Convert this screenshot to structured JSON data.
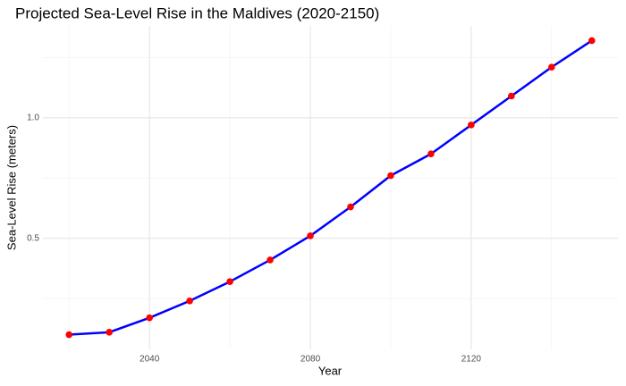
{
  "chart_data": {
    "type": "line",
    "title": "Projected Sea-Level Rise in the Maldives (2020-2150)",
    "x_label": "Year",
    "y_label": "Sea-Level Rise (meters)",
    "x": [
      2020,
      2030,
      2040,
      2050,
      2060,
      2070,
      2080,
      2090,
      2100,
      2110,
      2120,
      2130,
      2140,
      2150
    ],
    "series": [
      {
        "name": "Sea-Level Rise",
        "color": "#0000ff",
        "marker_color": "#ff0000",
        "values": [
          0.1,
          0.11,
          0.17,
          0.24,
          0.32,
          0.41,
          0.51,
          0.63,
          0.76,
          0.85,
          0.97,
          1.09,
          1.21,
          1.32
        ]
      }
    ],
    "xlim": [
      2013.5,
      2156.5
    ],
    "xticks": [
      2040,
      2080,
      2120
    ],
    "xticks_minor": [
      2020,
      2060,
      2100,
      2140
    ],
    "ylim": [
      0.039,
      1.381
    ],
    "yticks": [
      {
        "value": 0.5,
        "label": "0.5"
      },
      {
        "value": 1,
        "label": "1.0"
      }
    ],
    "yticks_minor": [
      0.25,
      0.75,
      1.25
    ],
    "grid": true
  }
}
